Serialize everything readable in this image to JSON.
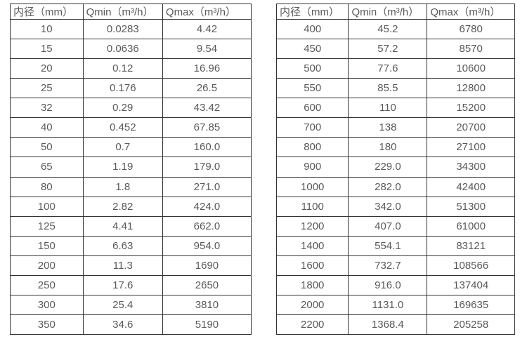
{
  "page": {
    "background_color": "#ffffff",
    "text_color": "#595959",
    "border_color": "#333333"
  },
  "tables": [
    {
      "name": "flow-spec-table-small-diameters",
      "headers": [
        "内径（mm）",
        "Qmin（m³/h）",
        "Qmax（m³/h）"
      ],
      "rows": [
        [
          "10",
          "0.0283",
          "4.42"
        ],
        [
          "15",
          "0.0636",
          "9.54"
        ],
        [
          "20",
          "0.12",
          "16.96"
        ],
        [
          "25",
          "0.176",
          "26.5"
        ],
        [
          "32",
          "0.29",
          "43.42"
        ],
        [
          "40",
          "0.452",
          "67.85"
        ],
        [
          "50",
          "0.7",
          "160.0"
        ],
        [
          "65",
          "1.19",
          "179.0"
        ],
        [
          "80",
          "1.8",
          "271.0"
        ],
        [
          "100",
          "2.82",
          "424.0"
        ],
        [
          "125",
          "4.41",
          "662.0"
        ],
        [
          "150",
          "6.63",
          "954.0"
        ],
        [
          "200",
          "11.3",
          "1690"
        ],
        [
          "250",
          "17.6",
          "2650"
        ],
        [
          "300",
          "25.4",
          "3810"
        ],
        [
          "350",
          "34.6",
          "5190"
        ]
      ]
    },
    {
      "name": "flow-spec-table-large-diameters",
      "headers": [
        "内径（mm）",
        "Qmin（m³/h）",
        "Qmax（m³/h）"
      ],
      "rows": [
        [
          "400",
          "45.2",
          "6780"
        ],
        [
          "450",
          "57.2",
          "8570"
        ],
        [
          "500",
          "77.6",
          "10600"
        ],
        [
          "550",
          "85.5",
          "12800"
        ],
        [
          "600",
          "110",
          "15200"
        ],
        [
          "700",
          "138",
          "20700"
        ],
        [
          "800",
          "180",
          "27100"
        ],
        [
          "900",
          "229.0",
          "34300"
        ],
        [
          "1000",
          "282.0",
          "42400"
        ],
        [
          "1100",
          "342.0",
          "51300"
        ],
        [
          "1200",
          "407.0",
          "61000"
        ],
        [
          "1400",
          "554.1",
          "83121"
        ],
        [
          "1600",
          "732.7",
          "108566"
        ],
        [
          "1800",
          "916.0",
          "137404"
        ],
        [
          "2000",
          "1131.0",
          "169635"
        ],
        [
          "2200",
          "1368.4",
          "205258"
        ]
      ]
    }
  ]
}
